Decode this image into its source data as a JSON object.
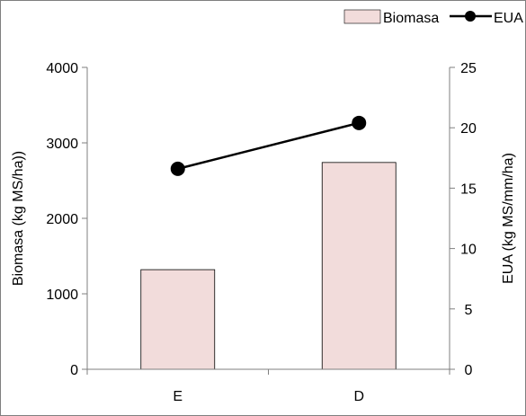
{
  "chart_data": {
    "type": "bar",
    "categories": [
      "E",
      "D"
    ],
    "series": [
      {
        "name": "Biomasa",
        "type": "bar",
        "axis": "left",
        "values": [
          1320,
          2740
        ],
        "color": "#f2dcdb",
        "stroke": "#000000"
      },
      {
        "name": "EUA",
        "type": "line",
        "axis": "right",
        "values": [
          16.6,
          20.4
        ],
        "color": "#000000"
      }
    ],
    "ylabel": "Biomasa (kg MS/ha))",
    "y2label": "EUA (kg MS/mm/ha)",
    "ylim": [
      0,
      4000
    ],
    "y2lim": [
      0,
      25
    ],
    "yticks": [
      "0",
      "1000",
      "2000",
      "3000",
      "4000"
    ],
    "y2ticks": [
      "0",
      "5",
      "10",
      "15",
      "20",
      "25"
    ],
    "grid": false,
    "legend_position": "top-right"
  }
}
